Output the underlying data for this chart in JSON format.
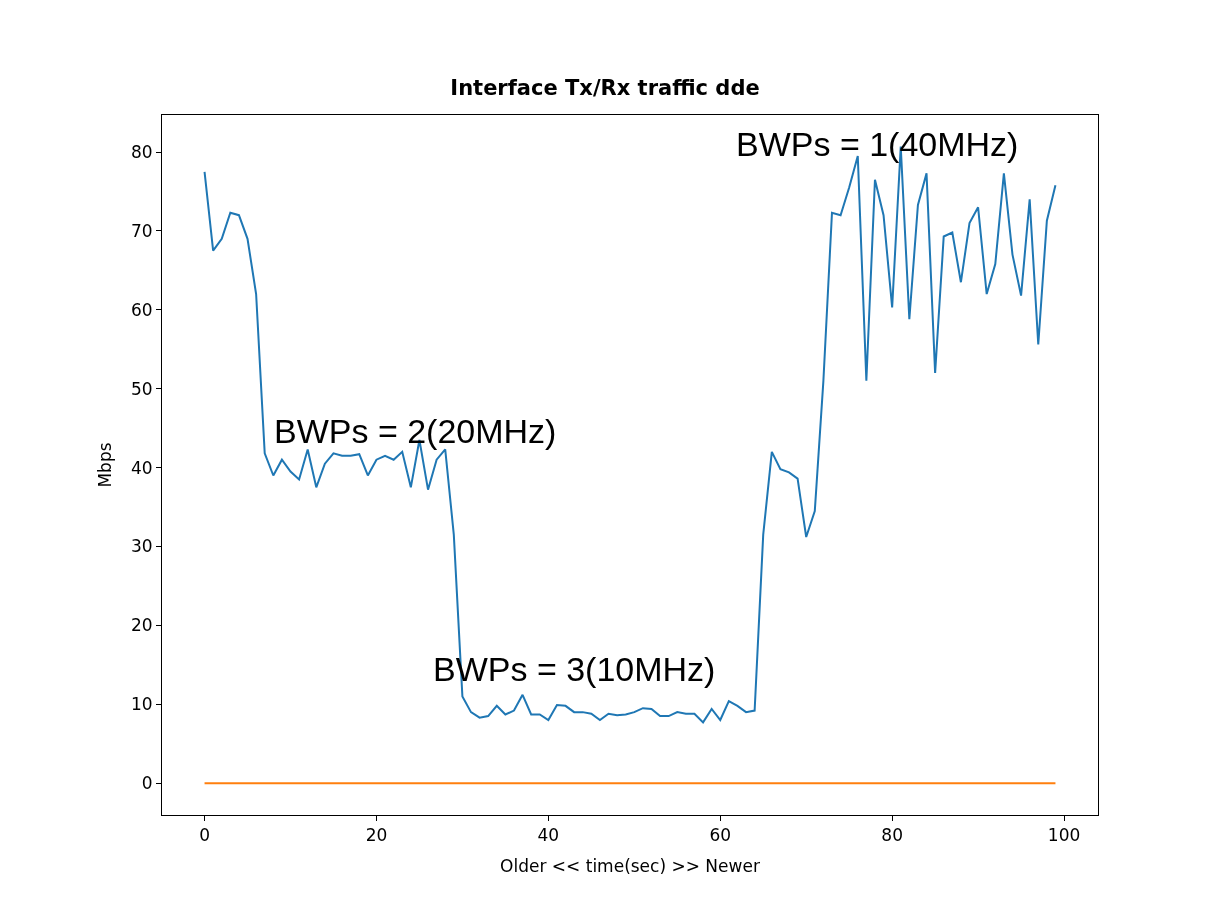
{
  "chart_data": {
    "type": "line",
    "title": "Interface Tx/Rx traffic dde",
    "xlabel": "Older << time(sec) >> Newer",
    "ylabel": "Mbps",
    "x": [
      0,
      1,
      2,
      3,
      4,
      5,
      6,
      7,
      8,
      9,
      10,
      11,
      12,
      13,
      14,
      15,
      16,
      17,
      18,
      19,
      20,
      21,
      22,
      23,
      24,
      25,
      26,
      27,
      28,
      29,
      30,
      31,
      32,
      33,
      34,
      35,
      36,
      37,
      38,
      39,
      40,
      41,
      42,
      43,
      44,
      45,
      46,
      47,
      48,
      49,
      50,
      51,
      52,
      53,
      54,
      55,
      56,
      57,
      58,
      59,
      60,
      61,
      62,
      63,
      64,
      65,
      66,
      67,
      68,
      69,
      70,
      71,
      72,
      73,
      74,
      75,
      76,
      77,
      78,
      79,
      80,
      81,
      82,
      83,
      84,
      85,
      86,
      87,
      88,
      89,
      90,
      91,
      92,
      93,
      94,
      95,
      96,
      97,
      98,
      99
    ],
    "series": [
      {
        "color": "#1f77b4",
        "values": [
          77.5,
          67.5,
          69,
          72.3,
          72,
          69,
          62,
          41.8,
          39,
          41,
          39.5,
          38.5,
          42.3,
          37.5,
          40.5,
          41.8,
          41.5,
          41.5,
          41.7,
          39,
          41,
          41.5,
          41,
          42,
          37.5,
          43.5,
          37.2,
          41,
          42.3,
          31.5,
          11,
          9,
          8.3,
          8.5,
          9.8,
          8.7,
          9.2,
          11.2,
          8.7,
          8.7,
          8,
          9.9,
          9.8,
          9,
          9,
          8.8,
          8,
          8.8,
          8.6,
          8.7,
          9,
          9.5,
          9.4,
          8.5,
          8.5,
          9,
          8.8,
          8.8,
          7.7,
          9.4,
          8,
          10.4,
          9.8,
          9,
          9.2,
          31.5,
          42,
          39.8,
          39.4,
          38.6,
          31.2,
          34.5,
          51,
          72.3,
          72,
          75.5,
          79.5,
          51,
          76.5,
          72,
          60.3,
          80.7,
          58.8,
          73.3,
          77.3,
          52,
          69.3,
          69.8,
          63.5,
          71,
          73,
          62,
          65.8,
          77.3,
          67,
          61.8,
          74,
          55.6,
          71.3,
          75.8
        ]
      },
      {
        "color": "#ff7f0e",
        "values": [
          0,
          0,
          0,
          0,
          0,
          0,
          0,
          0,
          0,
          0,
          0,
          0,
          0,
          0,
          0,
          0,
          0,
          0,
          0,
          0,
          0,
          0,
          0,
          0,
          0,
          0,
          0,
          0,
          0,
          0,
          0,
          0,
          0,
          0,
          0,
          0,
          0,
          0,
          0,
          0,
          0,
          0,
          0,
          0,
          0,
          0,
          0,
          0,
          0,
          0,
          0,
          0,
          0,
          0,
          0,
          0,
          0,
          0,
          0,
          0,
          0,
          0,
          0,
          0,
          0,
          0,
          0,
          0,
          0,
          0,
          0,
          0,
          0,
          0,
          0,
          0,
          0,
          0,
          0,
          0,
          0,
          0,
          0,
          0,
          0,
          0,
          0,
          0,
          0,
          0,
          0,
          0,
          0,
          0,
          0,
          0,
          0,
          0,
          0,
          0
        ]
      }
    ],
    "annotations": [
      "BWPs = 2(20MHz)",
      "BWPs = 3(10MHz)",
      "BWPs = 1(40MHz)"
    ],
    "xlim": [
      -4.95,
      103.95
    ],
    "xticks": [
      0,
      20,
      40,
      60,
      80,
      100
    ],
    "ylim": [
      -4.04,
      84.7
    ],
    "yticks": [
      0,
      10,
      20,
      30,
      40,
      50,
      60,
      70,
      80
    ],
    "marker": "none",
    "line_style": "solid"
  }
}
